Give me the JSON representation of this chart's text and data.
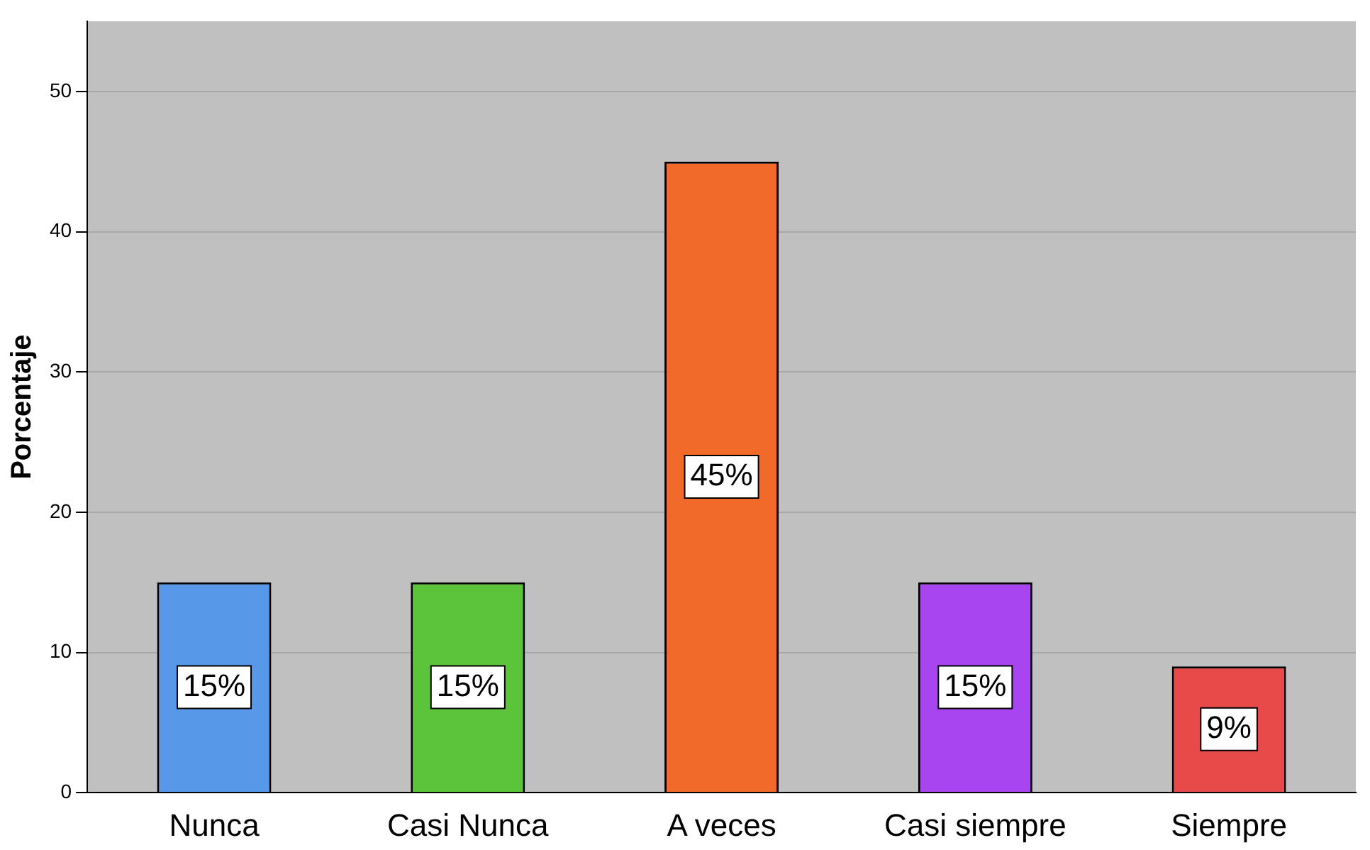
{
  "chart_data": {
    "type": "bar",
    "ylabel": "Porcentaje",
    "categories": [
      "Nunca",
      "Casi Nunca",
      "A veces",
      "Casi siempre",
      "Siempre"
    ],
    "values": [
      15,
      15,
      45,
      15,
      9
    ],
    "colors": [
      "#5898e8",
      "#5cc43a",
      "#f26a2a",
      "#a845f0",
      "#e84a4a"
    ],
    "value_labels": [
      "15%",
      "15%",
      "45%",
      "15%",
      "9%"
    ],
    "ylim": [
      0,
      55
    ],
    "yticks": [
      0,
      10,
      20,
      30,
      40,
      50
    ],
    "grid": "y",
    "legend": false
  }
}
